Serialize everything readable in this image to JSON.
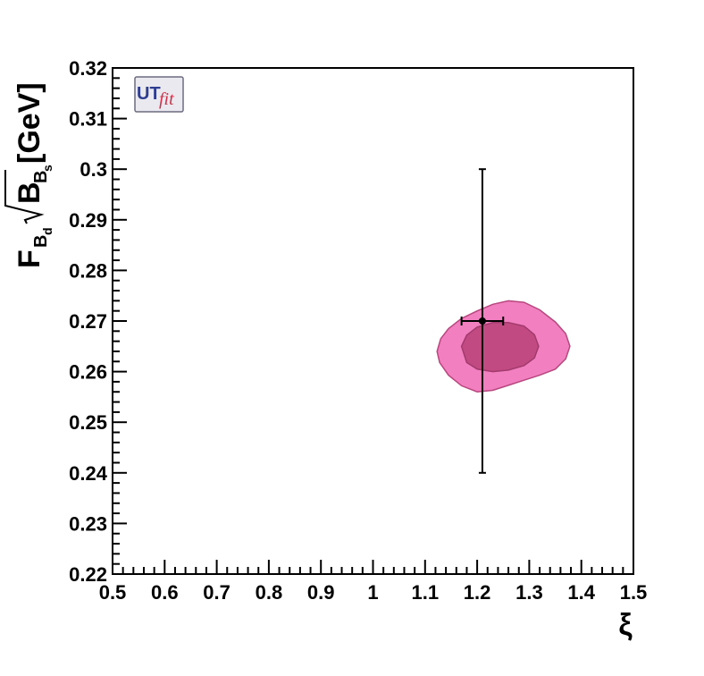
{
  "chart_data": {
    "type": "scatter",
    "xlabel": "ξ",
    "ylabel": {
      "F": "F",
      "F_sub": "B",
      "F_subsub": "d",
      "B": "B",
      "B_sub": "B",
      "B_subsub": "s",
      "unit": "[GeV]"
    },
    "xlim": [
      0.5,
      1.5
    ],
    "ylim": [
      0.22,
      0.32
    ],
    "x_ticks": [
      "0.5",
      "0.6",
      "0.7",
      "0.8",
      "0.9",
      "1",
      "1.1",
      "1.2",
      "1.3",
      "1.4",
      "1.5"
    ],
    "y_ticks": [
      "0.22",
      "0.23",
      "0.24",
      "0.25",
      "0.26",
      "0.27",
      "0.28",
      "0.29",
      "0.3",
      "0.31",
      "0.32"
    ],
    "grid": false,
    "logo": {
      "ut": "UT",
      "fit": "fit"
    },
    "point": {
      "x": 1.21,
      "y": 0.27,
      "x_err": [
        1.17,
        1.25
      ],
      "y_err": [
        0.24,
        0.3
      ]
    },
    "contours": [
      {
        "level": "outer",
        "color": "#f27fbf",
        "edge": "#b8477f",
        "points": [
          [
            1.123,
            0.264
          ],
          [
            1.13,
            0.2665
          ],
          [
            1.145,
            0.2685
          ],
          [
            1.17,
            0.2705
          ],
          [
            1.2,
            0.272
          ],
          [
            1.23,
            0.2733
          ],
          [
            1.26,
            0.274
          ],
          [
            1.29,
            0.2737
          ],
          [
            1.32,
            0.2722
          ],
          [
            1.35,
            0.2698
          ],
          [
            1.37,
            0.2675
          ],
          [
            1.378,
            0.265
          ],
          [
            1.37,
            0.2625
          ],
          [
            1.35,
            0.2605
          ],
          [
            1.32,
            0.2593
          ],
          [
            1.29,
            0.2583
          ],
          [
            1.26,
            0.2573
          ],
          [
            1.23,
            0.2563
          ],
          [
            1.2,
            0.256
          ],
          [
            1.17,
            0.2572
          ],
          [
            1.145,
            0.2593
          ],
          [
            1.128,
            0.2618
          ]
        ]
      },
      {
        "level": "inner",
        "color": "#c24a82",
        "edge": "#a13a6d",
        "points": [
          [
            1.17,
            0.265
          ],
          [
            1.18,
            0.2672
          ],
          [
            1.2,
            0.2688
          ],
          [
            1.23,
            0.2697
          ],
          [
            1.26,
            0.2697
          ],
          [
            1.29,
            0.269
          ],
          [
            1.31,
            0.2673
          ],
          [
            1.318,
            0.265
          ],
          [
            1.31,
            0.2627
          ],
          [
            1.29,
            0.2612
          ],
          [
            1.26,
            0.2603
          ],
          [
            1.23,
            0.26
          ],
          [
            1.2,
            0.2605
          ],
          [
            1.18,
            0.2618
          ]
        ]
      }
    ]
  }
}
